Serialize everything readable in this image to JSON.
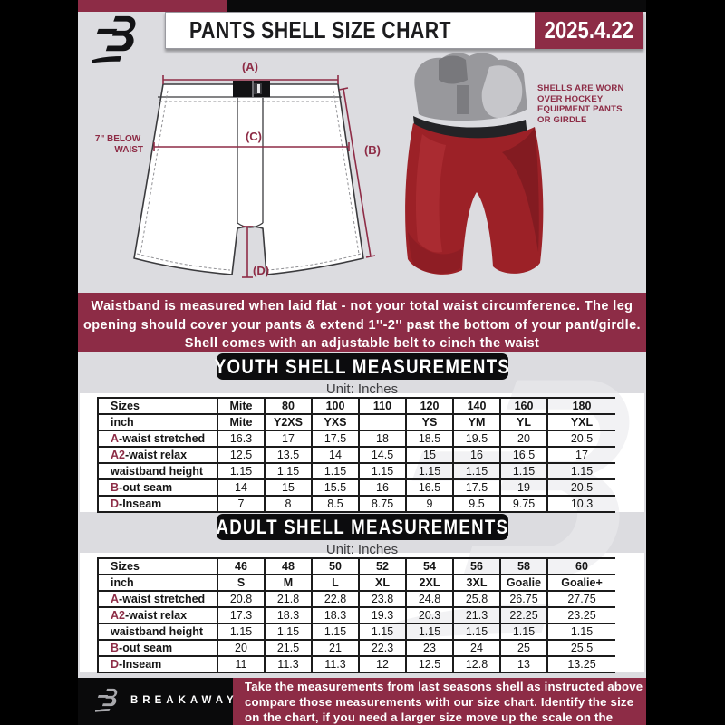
{
  "header": {
    "title": "PANTS SHELL SIZE CHART",
    "date": "2025.4.22"
  },
  "diagram": {
    "label_a": "(A)",
    "label_b": "(B)",
    "label_c": "(C)",
    "label_d": "(D)",
    "waist_note": [
      "7'' BELOW",
      "WAIST"
    ],
    "photo_caption": [
      "SHELLS ARE WORN",
      "OVER HOCKEY",
      "EQUIPMENT PANTS",
      "OR GIRDLE"
    ]
  },
  "info_banner": {
    "lines": [
      "Waistband is measured when laid flat - not your total waist circumference. The leg",
      "opening should cover your pants & extend 1''-2'' past the bottom of your pant/girdle.",
      "Shell comes with an adjustable belt to cinch the waist"
    ]
  },
  "youth": {
    "title": "YOUTH SHELL MEASUREMENTS",
    "unit": "Unit: Inches",
    "table": {
      "rows": [
        {
          "label": "Sizes",
          "bold": true,
          "values": [
            "Mite",
            "80",
            "100",
            "110",
            "120",
            "140",
            "160",
            "180"
          ]
        },
        {
          "label": "inch",
          "bold": true,
          "values": [
            "Mite",
            "Y2XS",
            "YXS",
            "",
            "YS",
            "YM",
            "YL",
            "YXL"
          ]
        },
        {
          "accent": "A",
          "label": "-waist stretched",
          "values": [
            "16.3",
            "17",
            "17.5",
            "18",
            "18.5",
            "19.5",
            "20",
            "20.5"
          ]
        },
        {
          "accent": "A2",
          "label": "-waist relax",
          "values": [
            "12.5",
            "13.5",
            "14",
            "14.5",
            "15",
            "16",
            "16.5",
            "17"
          ]
        },
        {
          "label": "waistband height",
          "values": [
            "1.15",
            "1.15",
            "1.15",
            "1.15",
            "1.15",
            "1.15",
            "1.15",
            "1.15"
          ]
        },
        {
          "accent": "B",
          "label": "-out seam",
          "values": [
            "14",
            "15",
            "15.5",
            "16",
            "16.5",
            "17.5",
            "19",
            "20.5"
          ]
        },
        {
          "accent": "D",
          "label": "-Inseam",
          "values": [
            "7",
            "8",
            "8.5",
            "8.75",
            "9",
            "9.5",
            "9.75",
            "10.3"
          ]
        }
      ]
    }
  },
  "adult": {
    "title": "ADULT SHELL MEASUREMENTS",
    "unit": "Unit: Inches",
    "table": {
      "rows": [
        {
          "label": "Sizes",
          "bold": true,
          "values": [
            "46",
            "48",
            "50",
            "52",
            "54",
            "56",
            "58",
            "60"
          ]
        },
        {
          "label": "inch",
          "bold": true,
          "values": [
            "S",
            "M",
            "L",
            "XL",
            "2XL",
            "3XL",
            "Goalie",
            "Goalie+"
          ]
        },
        {
          "accent": "A",
          "label": "-waist stretched",
          "values": [
            "20.8",
            "21.8",
            "22.8",
            "23.8",
            "24.8",
            "25.8",
            "26.75",
            "27.75"
          ]
        },
        {
          "accent": "A2",
          "label": "-waist relax",
          "values": [
            "17.3",
            "18.3",
            "18.3",
            "19.3",
            "20.3",
            "21.3",
            "22.25",
            "23.25"
          ]
        },
        {
          "label": "waistband height",
          "values": [
            "1.15",
            "1.15",
            "1.15",
            "1.15",
            "1.15",
            "1.15",
            "1.15",
            "1.15"
          ]
        },
        {
          "accent": "B",
          "label": "-out seam",
          "values": [
            "20",
            "21.5",
            "21",
            "22.3",
            "23",
            "24",
            "25",
            "25.5"
          ]
        },
        {
          "accent": "D",
          "label": "-Inseam",
          "values": [
            "11",
            "11.3",
            "11.3",
            "12",
            "12.5",
            "12.8",
            "13",
            "13.25"
          ]
        }
      ]
    }
  },
  "footer": {
    "brand": "BREAKAWAY",
    "note": [
      "Take the measurements from last seasons shell as instructed above",
      "compare those measurements  with our size chart. Identify the size",
      "on the chart, if you need a larger size move up the scale on the chart"
    ]
  },
  "colors": {
    "maroon": "#8d2c46",
    "flyer_bg": "#dcdce0",
    "banner_black": "#0c0c0e",
    "shell_red": "#9c2127"
  }
}
